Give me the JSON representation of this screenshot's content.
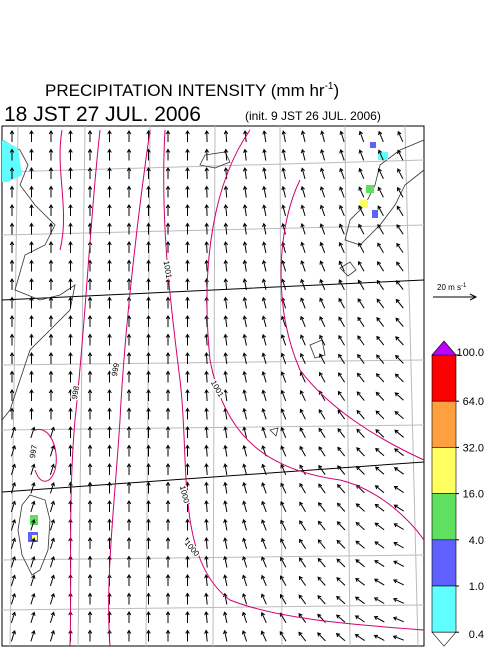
{
  "header": {
    "title_prefix": "PRECIPITATION INTENSITY (mm hr",
    "title_exponent": "-1",
    "title_suffix": ")",
    "valid_time": "18 JST 27 JUL. 2006",
    "init_time": "(init. 9 JST 26 JUL. 2006)"
  },
  "vector_legend": {
    "label_prefix": "20 m s",
    "label_exponent": "-1"
  },
  "map": {
    "isobar_labels": [
      1001,
      999,
      998,
      997,
      1001,
      1000,
      1000
    ]
  },
  "colorbar": {
    "ticks": [
      {
        "value": 100,
        "label": "100.0"
      },
      {
        "value": 64,
        "label": "64.0"
      },
      {
        "value": 32,
        "label": "32.0"
      },
      {
        "value": 16,
        "label": "16.0"
      },
      {
        "value": 4,
        "label": "4.0"
      },
      {
        "value": 1,
        "label": "1.0"
      },
      {
        "value": 0.4,
        "label": "0.4"
      }
    ],
    "colors": [
      "#ff0000",
      "#ffa040",
      "#ffff60",
      "#60e060",
      "#6060ff",
      "#60ffff"
    ],
    "over_color": "#c000ff",
    "under_color": "#ffffff"
  }
}
